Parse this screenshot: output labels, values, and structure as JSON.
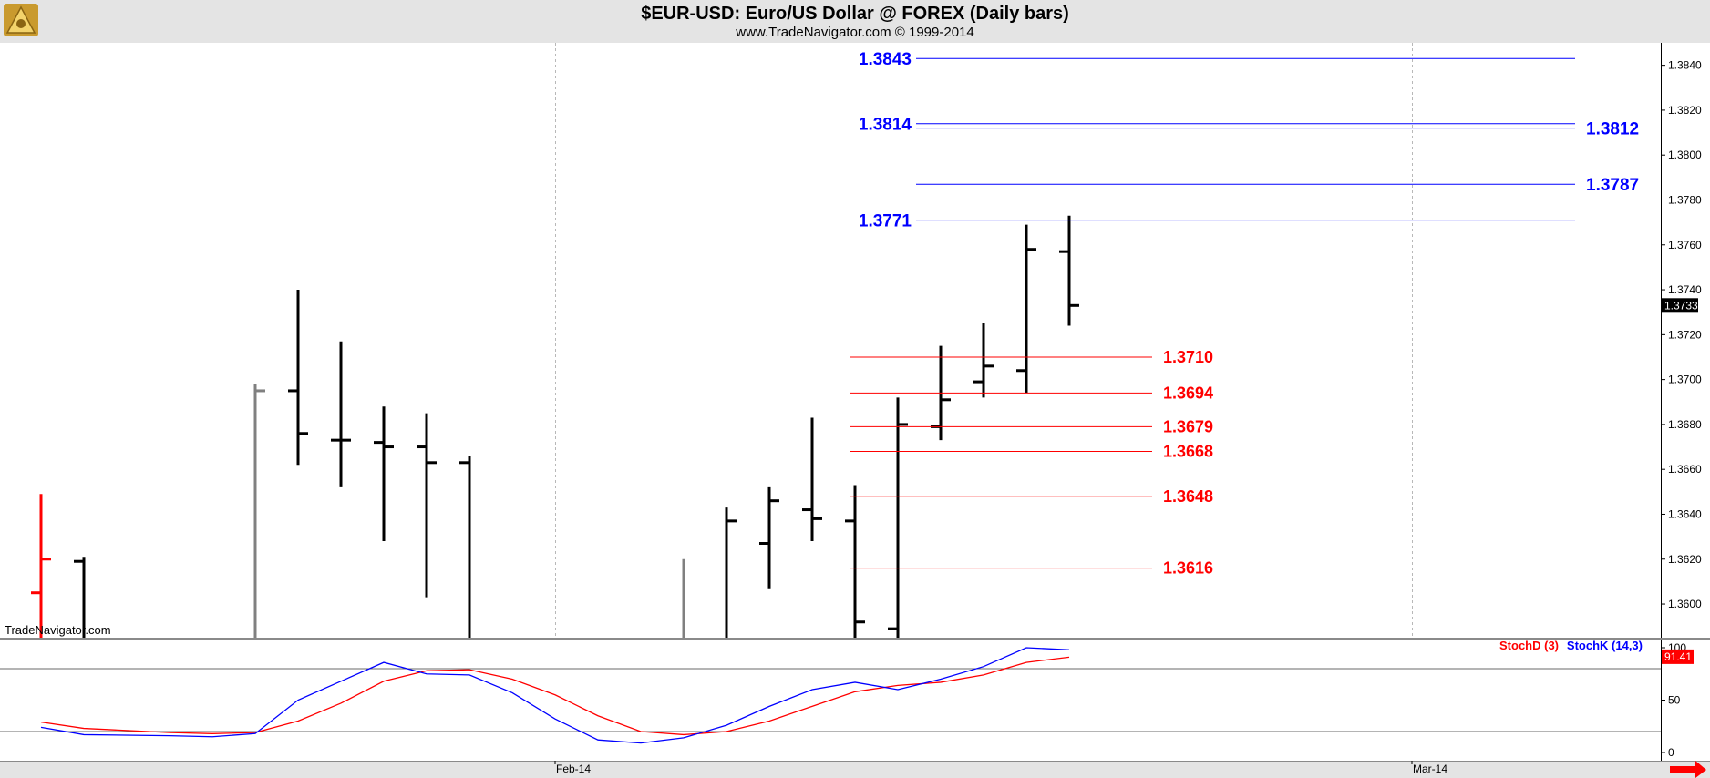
{
  "header": {
    "title": "$EUR-USD:  Euro/US Dollar @ FOREX  (Daily bars)",
    "subtitle": "www.TradeNavigator.com © 1999-2014"
  },
  "watermark": "TradeNavigator.com",
  "colors": {
    "up_bar": "#000000",
    "gray_bar": "#808080",
    "red_bar": "#ff0000",
    "resistance": "#0000ff",
    "support": "#ff0000",
    "stoch_d": "#ff0000",
    "stoch_k": "#0000ff",
    "background": "#ffffff"
  },
  "chart_data": [
    {
      "type": "ohlc",
      "title": "$EUR-USD:  Euro/US Dollar @ FOREX  (Daily bars)",
      "x_labels": [
        "Feb-14",
        "Mar-14"
      ],
      "x_label_slots": [
        12,
        32
      ],
      "grid_slots": [
        12,
        32
      ],
      "xlim_slots": [
        -1,
        38
      ],
      "ylim": [
        1.3585,
        1.385
      ],
      "y_ticks": [
        "1.3600",
        "1.3620",
        "1.3640",
        "1.3660",
        "1.3680",
        "1.3700",
        "1.3720",
        "1.3740",
        "1.3760",
        "1.3780",
        "1.3800",
        "1.3820",
        "1.3840"
      ],
      "last_price": "1.3733",
      "bars": [
        {
          "slot": 0,
          "open": 1.3605,
          "high": 1.3649,
          "low": 1.358,
          "close": 1.362,
          "color": "red"
        },
        {
          "slot": 1,
          "open": 1.3619,
          "high": 1.3621,
          "low": 1.358,
          "close": 1.358,
          "color": "black"
        },
        {
          "slot": 5,
          "open": 1.358,
          "high": 1.3698,
          "low": 1.358,
          "close": 1.3695,
          "color": "gray"
        },
        {
          "slot": 6,
          "open": 1.3695,
          "high": 1.374,
          "low": 1.3662,
          "close": 1.3676,
          "color": "black"
        },
        {
          "slot": 7,
          "open": 1.3673,
          "high": 1.3717,
          "low": 1.3652,
          "close": 1.3673,
          "color": "black"
        },
        {
          "slot": 8,
          "open": 1.3672,
          "high": 1.3688,
          "low": 1.3628,
          "close": 1.367,
          "color": "black"
        },
        {
          "slot": 9,
          "open": 1.367,
          "high": 1.3685,
          "low": 1.3603,
          "close": 1.3663,
          "color": "black"
        },
        {
          "slot": 10,
          "open": 1.3663,
          "high": 1.3666,
          "low": 1.358,
          "close": 1.358,
          "color": "black"
        },
        {
          "slot": 15,
          "open": 1.358,
          "high": 1.362,
          "low": 1.358,
          "close": 1.358,
          "color": "gray"
        },
        {
          "slot": 16,
          "open": 1.358,
          "high": 1.3643,
          "low": 1.358,
          "close": 1.3637,
          "color": "black"
        },
        {
          "slot": 17,
          "open": 1.3627,
          "high": 1.3652,
          "low": 1.3607,
          "close": 1.3646,
          "color": "black"
        },
        {
          "slot": 18,
          "open": 1.3642,
          "high": 1.3683,
          "low": 1.3628,
          "close": 1.3638,
          "color": "black"
        },
        {
          "slot": 19,
          "open": 1.3637,
          "high": 1.3653,
          "low": 1.358,
          "close": 1.3592,
          "color": "black"
        },
        {
          "slot": 20,
          "open": 1.3589,
          "high": 1.3692,
          "low": 1.358,
          "close": 1.368,
          "color": "black"
        },
        {
          "slot": 21,
          "open": 1.3679,
          "high": 1.3715,
          "low": 1.3673,
          "close": 1.3691,
          "color": "black"
        },
        {
          "slot": 22,
          "open": 1.3699,
          "high": 1.3725,
          "low": 1.3692,
          "close": 1.3706,
          "color": "black"
        },
        {
          "slot": 23,
          "open": 1.3704,
          "high": 1.3769,
          "low": 1.3694,
          "close": 1.3758,
          "color": "black"
        },
        {
          "slot": 24,
          "open": 1.3757,
          "high": 1.3773,
          "low": 1.3724,
          "close": 1.3733,
          "color": "black"
        }
      ],
      "resistance_lines": [
        {
          "value": 1.3843,
          "label": "1.3843",
          "from_slot": 20,
          "to_slot": 36,
          "label_side": "left"
        },
        {
          "value": 1.3814,
          "label": "1.3814",
          "from_slot": 20,
          "to_slot": 36,
          "label_side": "left"
        },
        {
          "value": 1.3812,
          "label": "1.3812",
          "from_slot": 20,
          "to_slot": 36,
          "label_side": "right"
        },
        {
          "value": 1.3787,
          "label": "1.3787",
          "from_slot": 20,
          "to_slot": 36,
          "label_side": "right"
        },
        {
          "value": 1.3771,
          "label": "1.3771",
          "from_slot": 20,
          "to_slot": 36,
          "label_side": "left"
        }
      ],
      "support_lines": [
        {
          "value": 1.371,
          "label": "1.3710",
          "from_slot": 19,
          "to_slot": 25
        },
        {
          "value": 1.3694,
          "label": "1.3694",
          "from_slot": 19,
          "to_slot": 25
        },
        {
          "value": 1.3679,
          "label": "1.3679",
          "from_slot": 19,
          "to_slot": 25
        },
        {
          "value": 1.3668,
          "label": "1.3668",
          "from_slot": 19,
          "to_slot": 25
        },
        {
          "value": 1.3648,
          "label": "1.3648",
          "from_slot": 19,
          "to_slot": 25
        },
        {
          "value": 1.3616,
          "label": "1.3616",
          "from_slot": 19,
          "to_slot": 25
        }
      ]
    },
    {
      "type": "line",
      "ylim": [
        0,
        100
      ],
      "y_ticks": [
        "0",
        "50",
        "100"
      ],
      "ref_lines": [
        80,
        20
      ],
      "last_value": "91.41",
      "series": [
        {
          "name": "StochD (3)",
          "color": "#ff0000",
          "slots": [
            0,
            1,
            3,
            4,
            5,
            6,
            7,
            8,
            9,
            10,
            11,
            12,
            13,
            14,
            15,
            16,
            17,
            18,
            19,
            20,
            21,
            22,
            23,
            24
          ],
          "values": [
            29,
            23,
            19,
            18,
            19,
            30,
            47,
            68,
            78,
            79,
            70,
            55,
            35,
            20,
            17,
            20,
            30,
            44,
            58,
            64,
            67,
            74,
            86,
            91
          ]
        },
        {
          "name": "StochK (14,3)",
          "color": "#0000ff",
          "slots": [
            0,
            1,
            3,
            4,
            5,
            6,
            7,
            8,
            9,
            10,
            11,
            12,
            13,
            14,
            15,
            16,
            17,
            18,
            19,
            20,
            21,
            22,
            23,
            24
          ],
          "values": [
            24,
            17,
            16,
            15,
            18,
            50,
            68,
            86,
            75,
            74,
            57,
            32,
            12,
            9,
            14,
            26,
            44,
            60,
            67,
            60,
            70,
            82,
            100,
            98
          ]
        }
      ]
    }
  ]
}
